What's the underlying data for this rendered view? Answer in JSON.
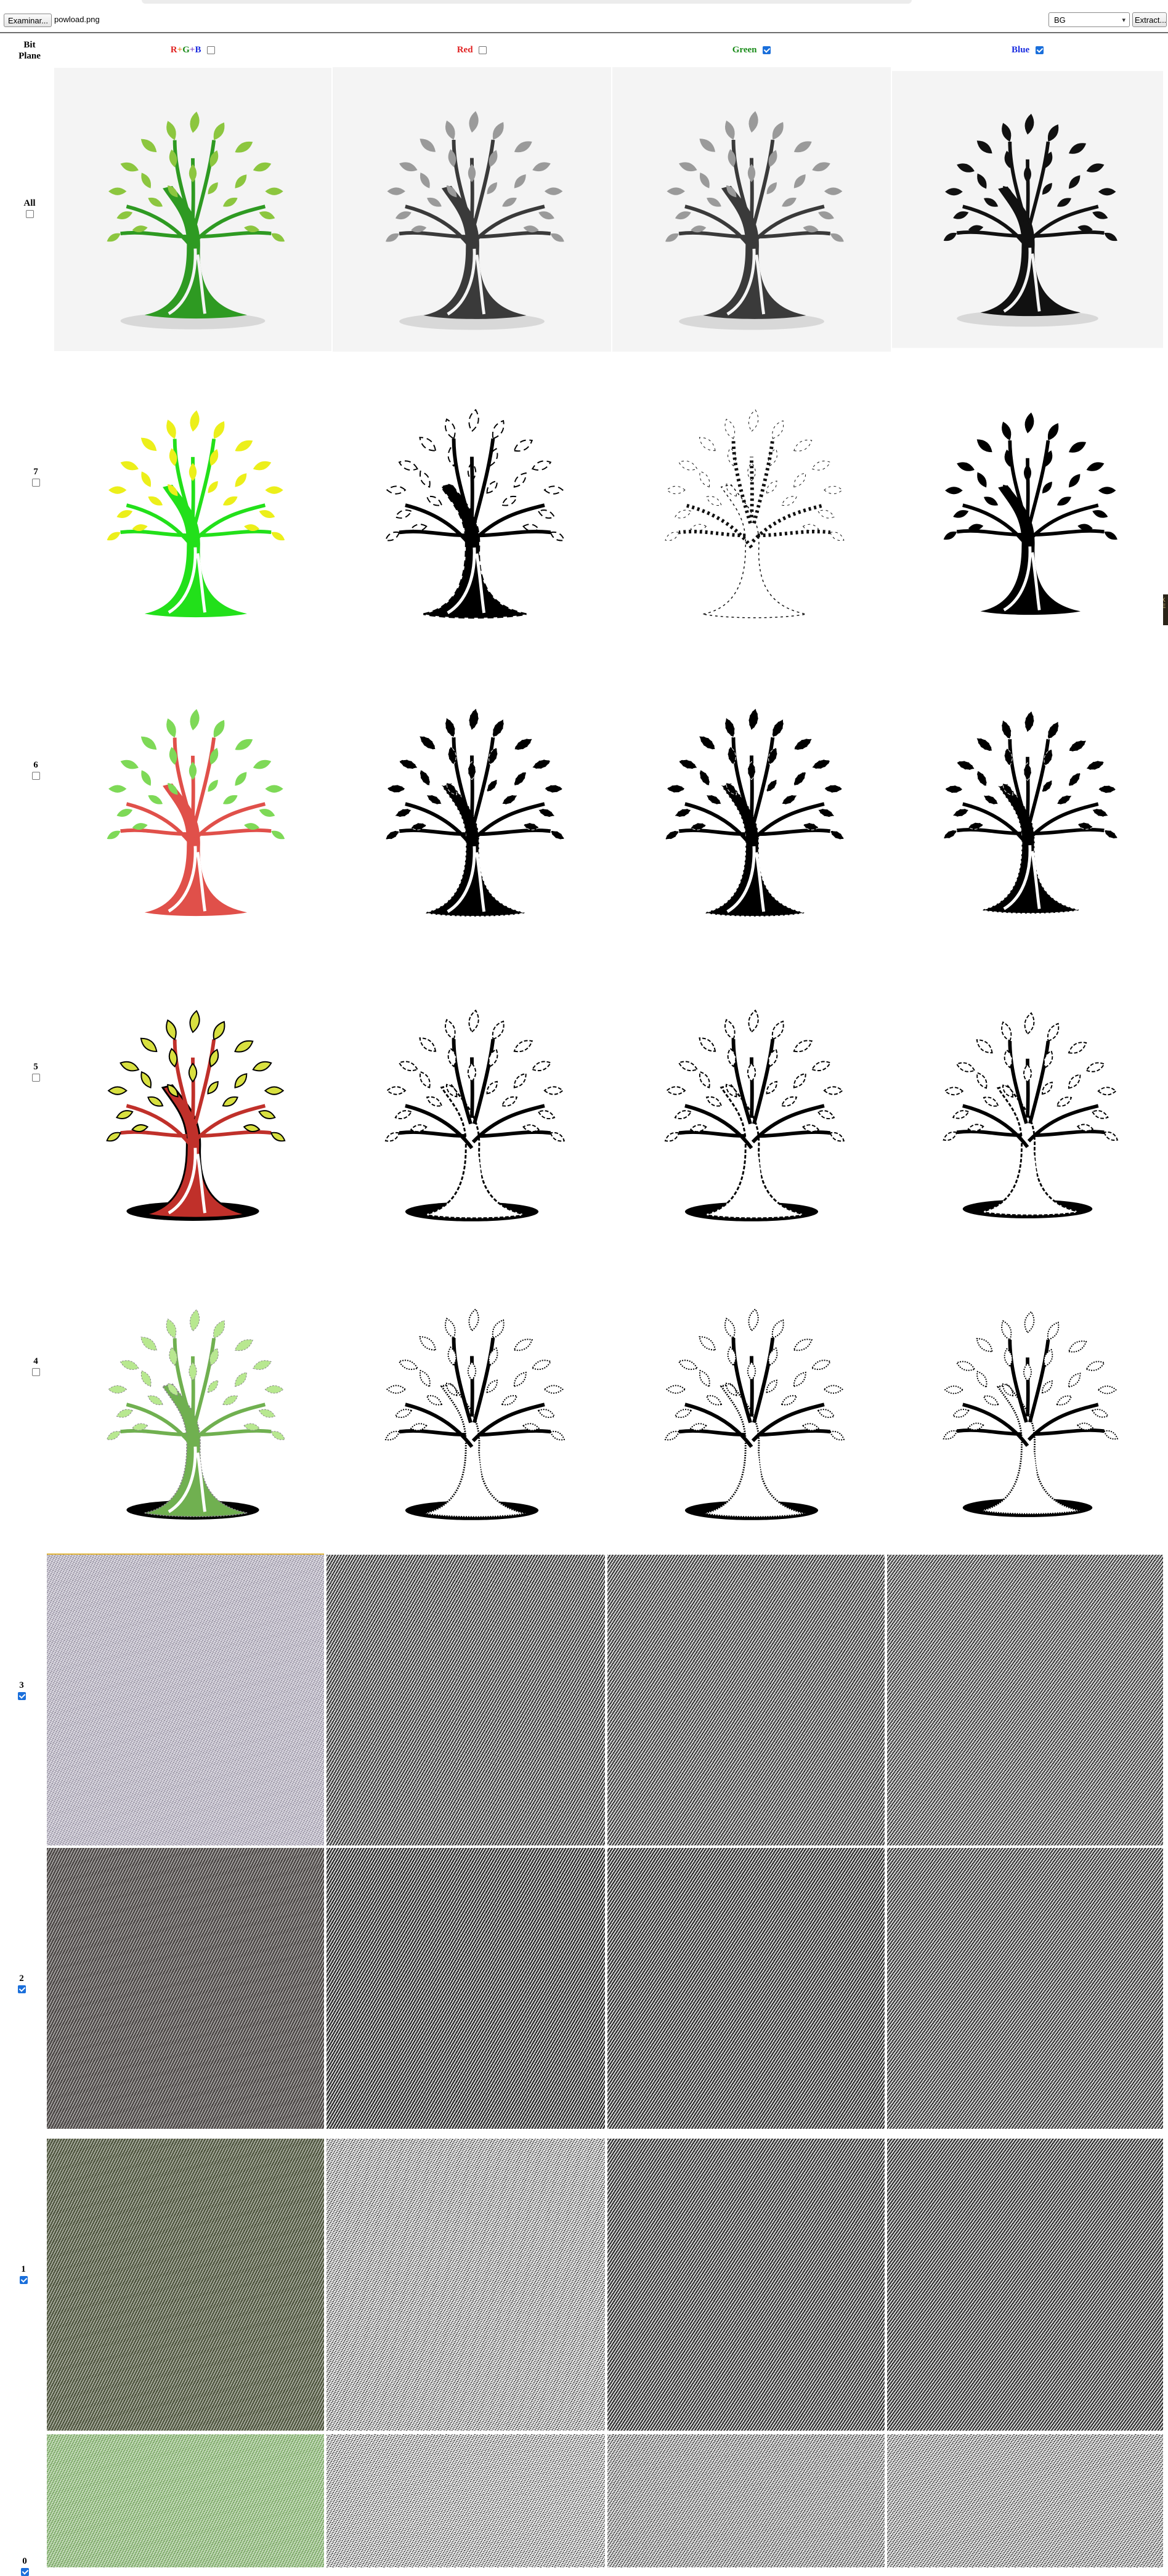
{
  "toolbar": {
    "browse_label": "Examinar...",
    "file_name": "powload.png",
    "plane_select": "BG",
    "extract_label": "Extract..."
  },
  "header": {
    "bit_plane": "Bit\nPlane",
    "rgb_r": "R",
    "rgb_plus1": "+",
    "rgb_g": "G",
    "rgb_plus2": "+",
    "rgb_b": "B",
    "red": "Red",
    "green": "Green",
    "blue": "Blue",
    "rgb_checked": false,
    "red_checked": false,
    "green_checked": true,
    "blue_checked": true
  },
  "colors": {
    "red": "#e02020",
    "green": "#1a8c1a",
    "blue": "#1a2ce0",
    "checkbox_on": "#1a6fdb"
  },
  "rows": [
    {
      "label": "All",
      "checked": false
    },
    {
      "label": "7",
      "checked": false
    },
    {
      "label": "6",
      "checked": false
    },
    {
      "label": "5",
      "checked": false
    },
    {
      "label": "4",
      "checked": false
    },
    {
      "label": "3",
      "checked": true
    },
    {
      "label": "2",
      "checked": true
    },
    {
      "label": "1",
      "checked": true
    },
    {
      "label": "0",
      "checked": true
    }
  ],
  "icons": {
    "checkbox": "checkbox-icon",
    "tree": "tree-image",
    "dropdown": "chevron-down-icon"
  }
}
